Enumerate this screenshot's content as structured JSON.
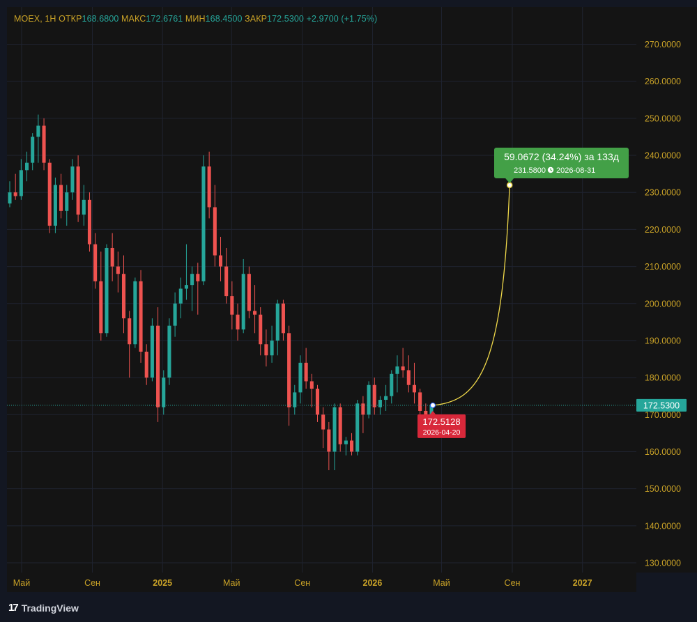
{
  "header": {
    "symbol": "MOEX, 1H",
    "open_label": "ОТКР",
    "open_value": "168.6800",
    "high_label": "МАКС",
    "high_value": "172.6761",
    "low_label": "МИН",
    "low_value": "168.4500",
    "close_label": "ЗАКР",
    "close_value": "172.5300",
    "change": "+2.9700 (+1.75%)"
  },
  "footer": {
    "brand": "TradingView"
  },
  "colors": {
    "up": "#26a69a",
    "down": "#ef5350",
    "projection": "#f0d94a",
    "grid": "#1f2330",
    "axis_text": "#c9a227",
    "bg": "#141414"
  },
  "chart_data": {
    "type": "candlestick",
    "y_range": [
      125,
      275
    ],
    "y_ticks": [
      "270.0000",
      "260.0000",
      "250.0000",
      "240.0000",
      "230.0000",
      "220.0000",
      "210.0000",
      "200.0000",
      "190.0000",
      "180.0000",
      "170.0000",
      "160.0000",
      "150.0000",
      "140.0000",
      "130.0000"
    ],
    "x_ticks": [
      {
        "label": "Май",
        "date": "2024-05-01",
        "bold": false
      },
      {
        "label": "Сен",
        "date": "2024-09-01",
        "bold": false
      },
      {
        "label": "2025",
        "date": "2025-01-01",
        "bold": true
      },
      {
        "label": "Май",
        "date": "2025-05-01",
        "bold": false
      },
      {
        "label": "Сен",
        "date": "2025-09-01",
        "bold": false
      },
      {
        "label": "2026",
        "date": "2026-01-01",
        "bold": true
      },
      {
        "label": "Май",
        "date": "2026-05-01",
        "bold": false
      },
      {
        "label": "Сен",
        "date": "2026-09-01",
        "bold": false
      },
      {
        "label": "2027",
        "date": "2027-01-01",
        "bold": true
      }
    ],
    "last_price": "172.5300",
    "projection": {
      "start_price": "172.5128",
      "start_date": "2026-04-20",
      "end_price": "231.5800",
      "end_date": "2026-08-31",
      "change_text": "59.0672 (34.24%) за 133д"
    },
    "candles": [
      {
        "o": 227,
        "h": 233,
        "l": 226,
        "c": 230
      },
      {
        "o": 230,
        "h": 235,
        "l": 228,
        "c": 229
      },
      {
        "o": 229,
        "h": 239,
        "l": 228,
        "c": 236
      },
      {
        "o": 236,
        "h": 241,
        "l": 233,
        "c": 238
      },
      {
        "o": 238,
        "h": 246,
        "l": 236,
        "c": 245
      },
      {
        "o": 245,
        "h": 251,
        "l": 238,
        "c": 248
      },
      {
        "o": 248,
        "h": 250,
        "l": 236,
        "c": 238
      },
      {
        "o": 238,
        "h": 239,
        "l": 219,
        "c": 221
      },
      {
        "o": 221,
        "h": 234,
        "l": 219,
        "c": 232
      },
      {
        "o": 232,
        "h": 235,
        "l": 223,
        "c": 225
      },
      {
        "o": 225,
        "h": 232,
        "l": 221,
        "c": 230
      },
      {
        "o": 230,
        "h": 239,
        "l": 228,
        "c": 237
      },
      {
        "o": 237,
        "h": 240,
        "l": 222,
        "c": 224
      },
      {
        "o": 224,
        "h": 232,
        "l": 221,
        "c": 228
      },
      {
        "o": 228,
        "h": 230,
        "l": 214,
        "c": 216
      },
      {
        "o": 216,
        "h": 219,
        "l": 204,
        "c": 206
      },
      {
        "o": 206,
        "h": 214,
        "l": 190,
        "c": 192
      },
      {
        "o": 192,
        "h": 216,
        "l": 191,
        "c": 215
      },
      {
        "o": 215,
        "h": 219,
        "l": 206,
        "c": 210
      },
      {
        "o": 210,
        "h": 214,
        "l": 203,
        "c": 208
      },
      {
        "o": 208,
        "h": 213,
        "l": 192,
        "c": 196
      },
      {
        "o": 196,
        "h": 198,
        "l": 180,
        "c": 189
      },
      {
        "o": 189,
        "h": 207,
        "l": 188,
        "c": 206
      },
      {
        "o": 206,
        "h": 209,
        "l": 184,
        "c": 187
      },
      {
        "o": 187,
        "h": 189,
        "l": 178,
        "c": 180
      },
      {
        "o": 180,
        "h": 196,
        "l": 179,
        "c": 194
      },
      {
        "o": 194,
        "h": 199,
        "l": 168,
        "c": 172
      },
      {
        "o": 172,
        "h": 182,
        "l": 170,
        "c": 180
      },
      {
        "o": 180,
        "h": 196,
        "l": 178,
        "c": 194
      },
      {
        "o": 194,
        "h": 203,
        "l": 191,
        "c": 200
      },
      {
        "o": 200,
        "h": 207,
        "l": 196,
        "c": 204
      },
      {
        "o": 204,
        "h": 216,
        "l": 201,
        "c": 205
      },
      {
        "o": 205,
        "h": 210,
        "l": 198,
        "c": 208
      },
      {
        "o": 208,
        "h": 211,
        "l": 197,
        "c": 206
      },
      {
        "o": 206,
        "h": 240,
        "l": 205,
        "c": 237
      },
      {
        "o": 237,
        "h": 241,
        "l": 223,
        "c": 226
      },
      {
        "o": 226,
        "h": 232,
        "l": 210,
        "c": 213
      },
      {
        "o": 213,
        "h": 218,
        "l": 206,
        "c": 210
      },
      {
        "o": 210,
        "h": 215,
        "l": 200,
        "c": 202
      },
      {
        "o": 202,
        "h": 206,
        "l": 193,
        "c": 197
      },
      {
        "o": 197,
        "h": 200,
        "l": 190,
        "c": 193
      },
      {
        "o": 193,
        "h": 212,
        "l": 192,
        "c": 208
      },
      {
        "o": 208,
        "h": 210,
        "l": 196,
        "c": 198
      },
      {
        "o": 198,
        "h": 205,
        "l": 192,
        "c": 197
      },
      {
        "o": 197,
        "h": 199,
        "l": 186,
        "c": 189
      },
      {
        "o": 189,
        "h": 193,
        "l": 183,
        "c": 186
      },
      {
        "o": 186,
        "h": 194,
        "l": 184,
        "c": 190
      },
      {
        "o": 190,
        "h": 201,
        "l": 186,
        "c": 200
      },
      {
        "o": 200,
        "h": 201,
        "l": 190,
        "c": 192
      },
      {
        "o": 192,
        "h": 194,
        "l": 167,
        "c": 172
      },
      {
        "o": 172,
        "h": 178,
        "l": 170,
        "c": 176
      },
      {
        "o": 176,
        "h": 186,
        "l": 173,
        "c": 184
      },
      {
        "o": 184,
        "h": 188,
        "l": 177,
        "c": 179
      },
      {
        "o": 179,
        "h": 181,
        "l": 172,
        "c": 177
      },
      {
        "o": 177,
        "h": 178,
        "l": 168,
        "c": 170
      },
      {
        "o": 170,
        "h": 172,
        "l": 161,
        "c": 166
      },
      {
        "o": 166,
        "h": 168,
        "l": 155,
        "c": 160
      },
      {
        "o": 160,
        "h": 173,
        "l": 155,
        "c": 172
      },
      {
        "o": 172,
        "h": 173,
        "l": 160,
        "c": 162
      },
      {
        "o": 162,
        "h": 164,
        "l": 159,
        "c": 163
      },
      {
        "o": 163,
        "h": 165,
        "l": 159,
        "c": 160
      },
      {
        "o": 160,
        "h": 174,
        "l": 159,
        "c": 173
      },
      {
        "o": 173,
        "h": 175,
        "l": 165,
        "c": 170
      },
      {
        "o": 170,
        "h": 179,
        "l": 169,
        "c": 178
      },
      {
        "o": 178,
        "h": 180,
        "l": 170,
        "c": 172
      },
      {
        "o": 172,
        "h": 175,
        "l": 170,
        "c": 174
      },
      {
        "o": 174,
        "h": 178,
        "l": 171,
        "c": 175
      },
      {
        "o": 175,
        "h": 182,
        "l": 173,
        "c": 181
      },
      {
        "o": 181,
        "h": 186,
        "l": 176,
        "c": 183
      },
      {
        "o": 183,
        "h": 188,
        "l": 180,
        "c": 182
      },
      {
        "o": 182,
        "h": 186,
        "l": 176,
        "c": 178
      },
      {
        "o": 178,
        "h": 184,
        "l": 173,
        "c": 176
      },
      {
        "o": 176,
        "h": 177,
        "l": 169,
        "c": 171
      },
      {
        "o": 171,
        "h": 173,
        "l": 168,
        "c": 170
      },
      {
        "o": 168.68,
        "h": 172.68,
        "l": 168.45,
        "c": 172.53
      }
    ]
  }
}
